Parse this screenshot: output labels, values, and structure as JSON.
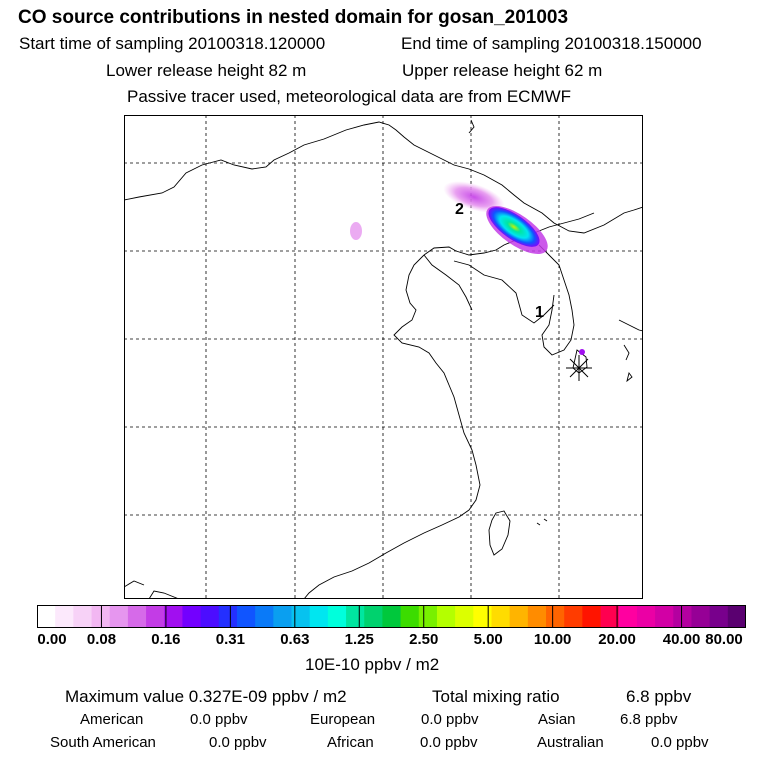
{
  "header": {
    "title": "CO  source contributions in nested domain for gosan_201003",
    "start_time": "Start time of sampling 20100318.120000",
    "end_time": "End time of sampling 20100318.150000",
    "lower_release": "Lower release height   82 m",
    "upper_release": "Upper release height   62 m",
    "tracer_note": "Passive tracer used, meteorological data are from ECMWF"
  },
  "map": {
    "labels": {
      "site_1": "1",
      "site_2": "2"
    },
    "colors": {
      "land_line": "#000000",
      "grid_line": "#000000"
    }
  },
  "colorbar": {
    "colors": [
      "#ffffff",
      "#fce9fc",
      "#f7d2f7",
      "#f2b7f2",
      "#e696ef",
      "#d66ae9",
      "#c33ce6",
      "#a10ff0",
      "#7300ff",
      "#4c0dff",
      "#2430ff",
      "#1055ff",
      "#0a7af8",
      "#0a9ff0",
      "#07c2ef",
      "#00e6f0",
      "#00ffdc",
      "#00e6a0",
      "#00d26e",
      "#00c83c",
      "#3cdc00",
      "#78f000",
      "#b4ff00",
      "#dcff00",
      "#ffff00",
      "#ffdc00",
      "#ffb400",
      "#ff8c00",
      "#ff6400",
      "#ff3c00",
      "#ff1400",
      "#ff0050",
      "#ff00a0",
      "#eb00a5",
      "#d200a5",
      "#b400a0",
      "#960096",
      "#78008c",
      "#5a0070"
    ],
    "tick_labels": [
      "0.00",
      "0.08",
      "0.16",
      "0.31",
      "0.63",
      "1.25",
      "2.50",
      "5.00",
      "10.00",
      "20.00",
      "40.00",
      "80.00"
    ],
    "unit": "10E-10 ppbv / m2"
  },
  "stats": {
    "max_value": "Maximum value  0.327E-09 ppbv / m2",
    "total_label": "Total mixing ratio",
    "total_value": "6.8 ppbv",
    "regions": [
      {
        "name": "American",
        "value": "0.0 ppbv"
      },
      {
        "name": "European",
        "value": "0.0 ppbv"
      },
      {
        "name": "Asian",
        "value": "6.8 ppbv"
      },
      {
        "name": "South American",
        "value": "0.0 ppbv"
      },
      {
        "name": "African",
        "value": "0.0 ppbv"
      },
      {
        "name": "Australian",
        "value": "0.0 ppbv"
      }
    ]
  }
}
